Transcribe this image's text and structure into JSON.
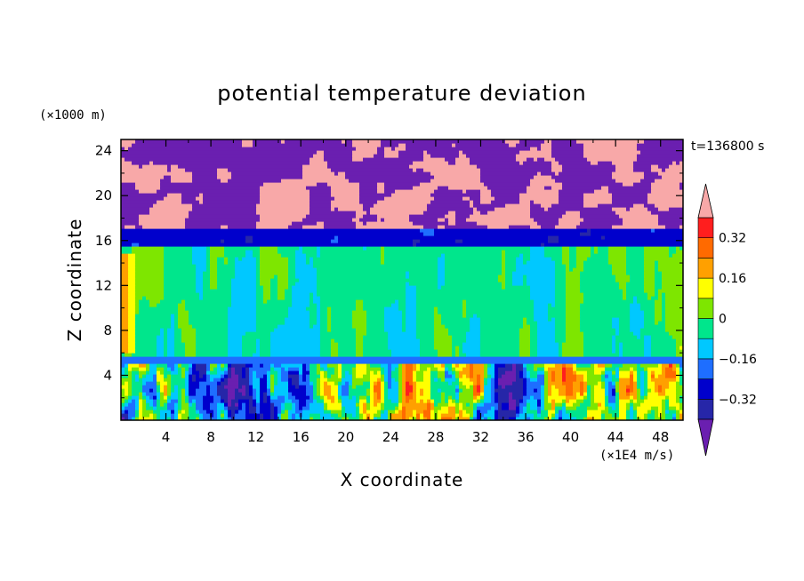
{
  "chart_data": {
    "type": "heatmap",
    "title": "potential temperature deviation",
    "xlabel": "X coordinate",
    "ylabel": "Z coordinate",
    "x_unit": "(×1E4 m/s)",
    "y_unit": "(×1000 m)",
    "time_label": "t=136800 s",
    "xlim": [
      0,
      50
    ],
    "ylim": [
      0,
      25
    ],
    "x_ticks": [
      4,
      8,
      12,
      16,
      20,
      24,
      28,
      32,
      36,
      40,
      44,
      48
    ],
    "y_ticks": [
      4,
      8,
      12,
      16,
      20,
      24
    ],
    "x_tick_labels": [
      "4",
      "8",
      "12",
      "16",
      "20",
      "24",
      "28",
      "32",
      "36",
      "40",
      "44",
      "48"
    ],
    "y_tick_labels": [
      "4",
      "8",
      "12",
      "16",
      "20",
      "24"
    ],
    "colorbar": {
      "levels": [
        -0.4,
        -0.32,
        -0.24,
        -0.16,
        -0.08,
        0,
        0.08,
        0.16,
        0.24,
        0.32,
        0.4
      ],
      "labels": [
        {
          "value": 0.32,
          "text": "0.32"
        },
        {
          "value": 0.16,
          "text": "0.16"
        },
        {
          "value": 0,
          "text": "0"
        },
        {
          "value": -0.16,
          "text": "−0.16"
        },
        {
          "value": -0.32,
          "text": "−0.32"
        }
      ],
      "colors": [
        "#6a1fb0",
        "#2626a8",
        "#0000cc",
        "#1e6eff",
        "#00c8ff",
        "#00e68c",
        "#7ee600",
        "#ffff00",
        "#ffa000",
        "#ff6a00",
        "#ff1e1e",
        "#f8a8a8"
      ]
    },
    "bands": [
      {
        "z_min": 0,
        "z_max": 5,
        "dominant": "mixed"
      },
      {
        "z_min": 5,
        "z_max": 5.6,
        "dominant": -0.2
      },
      {
        "z_min": 5.6,
        "z_max": 15.5,
        "dominant": -0.04
      },
      {
        "z_min": 15.5,
        "z_max": 17,
        "dominant": -0.28
      },
      {
        "z_min": 17,
        "z_max": 25,
        "dominant": "alternating ±0.4"
      }
    ]
  }
}
